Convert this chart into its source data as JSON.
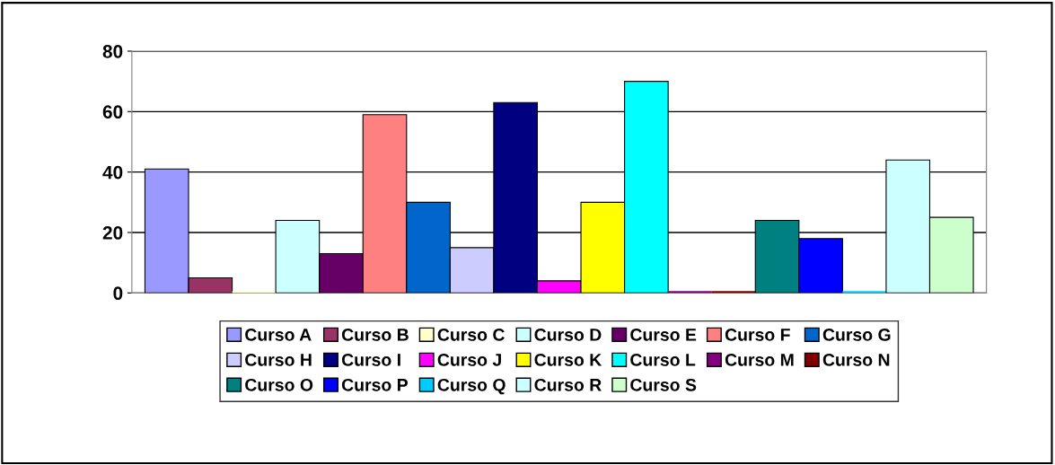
{
  "chart_data": {
    "type": "bar",
    "categories": [
      null
    ],
    "series": [
      {
        "name": "Curso A",
        "color": "#9999ff",
        "values": [
          41
        ]
      },
      {
        "name": "Curso B",
        "color": "#993366",
        "values": [
          5
        ]
      },
      {
        "name": "Curso C",
        "color": "#ffffcc",
        "values": [
          0
        ]
      },
      {
        "name": "Curso D",
        "color": "#ccffff",
        "values": [
          24
        ]
      },
      {
        "name": "Curso E",
        "color": "#660066",
        "values": [
          13
        ]
      },
      {
        "name": "Curso F",
        "color": "#ff8080",
        "values": [
          59
        ]
      },
      {
        "name": "Curso G",
        "color": "#0066cc",
        "values": [
          30
        ]
      },
      {
        "name": "Curso H",
        "color": "#ccccff",
        "values": [
          15
        ]
      },
      {
        "name": "Curso I",
        "color": "#000080",
        "values": [
          63
        ]
      },
      {
        "name": "Curso J",
        "color": "#ff00ff",
        "values": [
          4
        ]
      },
      {
        "name": "Curso K",
        "color": "#ffff00",
        "values": [
          30
        ]
      },
      {
        "name": "Curso L",
        "color": "#00ffff",
        "values": [
          70
        ]
      },
      {
        "name": "Curso M",
        "color": "#800080",
        "values": [
          0
        ]
      },
      {
        "name": "Curso N",
        "color": "#800000",
        "values": [
          0
        ]
      },
      {
        "name": "Curso O",
        "color": "#008080",
        "values": [
          24
        ]
      },
      {
        "name": "Curso P",
        "color": "#0000ff",
        "values": [
          18
        ]
      },
      {
        "name": "Curso Q",
        "color": "#00ccff",
        "values": [
          0
        ]
      },
      {
        "name": "Curso R",
        "color": "#ccffff",
        "values": [
          44
        ]
      },
      {
        "name": "Curso S",
        "color": "#ccffcc",
        "values": [
          25
        ]
      }
    ],
    "ylim": [
      0,
      80
    ],
    "yticks": [
      0,
      20,
      40,
      60,
      80
    ],
    "grid": "y",
    "legend": "bottom"
  }
}
